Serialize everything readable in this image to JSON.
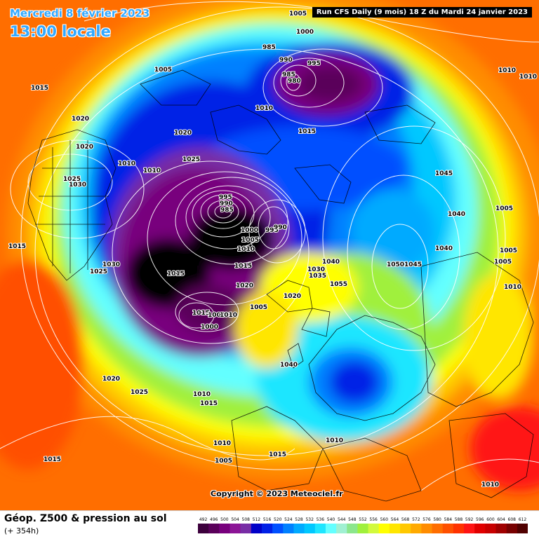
{
  "header": {
    "date": "Mercredi 8 février 2023",
    "time": "13:00 locale",
    "run_info": "Run CFS Daily (9 mois) 18 Z du Mardi 24 janvier 2023"
  },
  "footer": {
    "parameter": "Géop. Z500 & pression au sol",
    "lead_time": "(+ 354h)",
    "copyright": "Copyright © 2023 Meteociel.fr"
  },
  "colorbar": {
    "values": [
      "492",
      "496",
      "500",
      "504",
      "508",
      "512",
      "516",
      "520",
      "524",
      "528",
      "532",
      "536",
      "540",
      "544",
      "548",
      "552",
      "556",
      "560",
      "564",
      "568",
      "572",
      "576",
      "580",
      "584",
      "588",
      "592",
      "596",
      "600",
      "604",
      "608",
      "612"
    ],
    "colors": [
      "#3c003c",
      "#5a005a",
      "#78007d",
      "#8c1496",
      "#782da5",
      "#0000c8",
      "#0020e6",
      "#0050ff",
      "#0080ff",
      "#00aaff",
      "#00c8ff",
      "#1ee6ff",
      "#64ffff",
      "#a0f0d2",
      "#8ce68c",
      "#a0f03c",
      "#d2fa3c",
      "#ffff00",
      "#ffe600",
      "#ffc800",
      "#ffaa00",
      "#ff8c00",
      "#ff6e00",
      "#ff5000",
      "#ff3200",
      "#ff1414",
      "#e10000",
      "#c80000",
      "#a00000",
      "#780000",
      "#500000"
    ]
  },
  "isobar_labels": [
    {
      "text": "1005"
    },
    {
      "text": "1000"
    },
    {
      "text": "985"
    },
    {
      "text": "990"
    },
    {
      "text": "995"
    },
    {
      "text": "985"
    },
    {
      "text": "980"
    },
    {
      "text": "1010"
    },
    {
      "text": "1005"
    },
    {
      "text": "1015"
    },
    {
      "text": "1020"
    },
    {
      "text": "1020"
    },
    {
      "text": "1025"
    },
    {
      "text": "1015"
    },
    {
      "text": "1010"
    },
    {
      "text": "1020"
    },
    {
      "text": "1010"
    },
    {
      "text": "1025"
    },
    {
      "text": "1030"
    },
    {
      "text": "995"
    },
    {
      "text": "990"
    },
    {
      "text": "985"
    },
    {
      "text": "1000"
    },
    {
      "text": "995"
    },
    {
      "text": "990"
    },
    {
      "text": "1005"
    },
    {
      "text": "1010"
    },
    {
      "text": "1015"
    },
    {
      "text": "1030"
    },
    {
      "text": "1025"
    },
    {
      "text": "1015"
    },
    {
      "text": "1015"
    },
    {
      "text": "1020"
    },
    {
      "text": "1005"
    },
    {
      "text": "1015"
    },
    {
      "text": "1000"
    },
    {
      "text": "1010"
    },
    {
      "text": "1000"
    },
    {
      "text": "1020"
    },
    {
      "text": "1030"
    },
    {
      "text": "1035"
    },
    {
      "text": "1040"
    },
    {
      "text": "1055"
    },
    {
      "text": "1040"
    },
    {
      "text": "1045"
    },
    {
      "text": "1040"
    },
    {
      "text": "1040"
    },
    {
      "text": "1050"
    },
    {
      "text": "1045"
    },
    {
      "text": "1005"
    },
    {
      "text": "1005"
    },
    {
      "text": "1005"
    },
    {
      "text": "1010"
    },
    {
      "text": "1010"
    },
    {
      "text": "1020"
    },
    {
      "text": "1025"
    },
    {
      "text": "1010"
    },
    {
      "text": "1015"
    },
    {
      "text": "1010"
    },
    {
      "text": "1005"
    },
    {
      "text": "1015"
    },
    {
      "text": "1010"
    },
    {
      "text": "1015"
    },
    {
      "text": "1010"
    },
    {
      "text": "1010"
    }
  ]
}
